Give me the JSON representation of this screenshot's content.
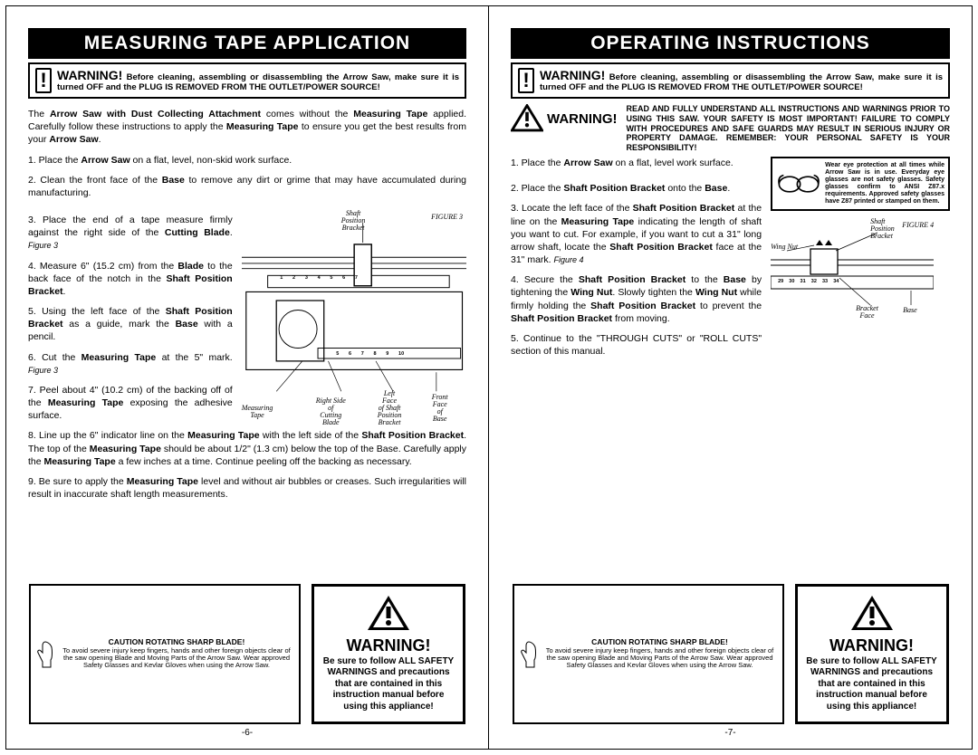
{
  "left": {
    "title": "MEASURING TAPE APPLICATION",
    "warn_head": "WARNING!",
    "warn_text": "Before cleaning, assembling or disassembling the Arrow Saw, make sure it is turned OFF and the PLUG IS REMOVED FROM THE OUTLET/POWER SOURCE!",
    "intro_html": "The <b>Arrow Saw with Dust Collecting Attachment</b> comes without the <b>Measuring Tape</b> applied. Carefully follow these instructions to apply the <b>Measuring Tape</b> to ensure you get the best results from your <b>Arrow Saw</b>.",
    "step1": "1.   Place the <b>Arrow Saw</b> on a flat, level, non-skid work surface.",
    "step2": "2.   Clean the front face of the <b>Base</b> to remove any dirt or grime that may have accumulated during manufacturing.",
    "step3": "3.   Place the end of a tape measure firmly against the right side of the <b>Cutting Blade</b>. <i class='italic'>Figure 3</i>",
    "step4": "4.   Measure 6\" (15.2 cm) from the <b>Blade</b> to the back face of the notch in the <b>Shaft Position Bracket</b>.",
    "step5": "5.   Using the left face of the <b>Shaft Position Bracket</b> as a guide, mark the <b>Base</b> with a pencil.",
    "step6": "6.   Cut the <b>Measuring Tape</b> at the 5\" mark. <i class='italic'>Figure 3</i>",
    "step7": "7.   Peel about 4\" (10.2 cm) of the backing off of the <b>Measuring Tape</b> exposing the adhesive surface.",
    "step8": "8.   Line up the 6\" indicator line on the <b>Measuring Tape</b> with the left side of the <b>Shaft Position Bracket</b>. The top of the <b>Measuring Tape</b> should be about 1/2\" (1.3 cm) below the top of the Base. Carefully apply the <b>Measuring Tape</b> a few inches at a time. Continue peeling off the backing as necessary.",
    "step9": "9.   Be sure to apply the <b>Measuring Tape</b> level and without air bubbles or creases. Such irregularities will result in inaccurate shaft length measurements.",
    "fig3": {
      "title": "FIGURE 3",
      "labels": {
        "shaft_pos_bracket": "Shaft\nPosition\nBracket",
        "measuring_tape": "Measuring\nTape",
        "right_side_cutting": "Right Side\nof\nCutting\nBlade",
        "left_face_shaft": "Left\nFace\nof Shaft\nPosition\nBracket",
        "front_face_base": "Front\nFace\nof\nBase"
      },
      "ruler_top": "   1       2       3       4       5       6       7",
      "ruler_bot": "                    5       6       7       8       9       10"
    },
    "caution_title": "CAUTION ROTATING SHARP BLADE!",
    "caution_text": "To avoid severe injury keep fingers, hands and other foreign objects clear of the saw opening Blade and Moving Parts of the Arrow Saw. Wear approved Safety Glasses and Kevlar Gloves when using the Arrow Saw.",
    "tri_title": "WARNING!",
    "tri_text": "Be sure to follow ALL SAFETY WARNINGS and precautions that are contained in this instruction manual before using this appliance!",
    "page_num": "-6-"
  },
  "right": {
    "title": "OPERATING INSTRUCTIONS",
    "warn_head": "WARNING!",
    "warn_text": "Before cleaning, assembling or disassembling the Arrow Saw, make sure it is turned OFF and the PLUG IS REMOVED FROM THE OUTLET/POWER SOURCE!",
    "safety_text": "READ AND FULLY UNDERSTAND ALL INSTRUCTIONS AND WARNINGS PRIOR TO USING THIS SAW. YOUR SAFETY IS MOST IMPORTANT! FAILURE TO COMPLY WITH PROCEDURES AND SAFE GUARDS MAY RESULT IN SERIOUS INJURY OR PROPERTY DAMAGE. REMEMBER: YOUR PERSONAL SAFETY IS YOUR RESPONSIBILITY!",
    "goggles_text": "Wear eye protection at all times while Arrow Saw is in use. Everyday eye glasses are not safety glasses. Safety glasses confirm to ANSI Z87.x requirements. Approved safety glasses have Z87 printed or stamped on them.",
    "step1": "1.   Place the <b>Arrow Saw</b> on a flat, level work surface.",
    "step2": "2.   Place the <b>Shaft Position Bracket</b> onto the <b>Base</b>.",
    "step3": "3.   Locate the left face of the <b>Shaft Position Bracket</b> at the line on the <b>Measuring Tape</b> indicating the length of shaft you want to cut. For example, if you want to cut a 31\" long arrow shaft, locate the <b>Shaft Position Bracket</b> face at the 31\" mark. <i class='italic'>Figure 4</i>",
    "step4": "4.   Secure the <b>Shaft Position Bracket</b> to the <b>Base</b> by tightening the <b>Wing Nut</b>. Slowly tighten the <b>Wing Nut</b> while firmly holding the <b>Shaft Position Bracket</b> to prevent the <b>Shaft Position Bracket</b> from moving.",
    "step5": "5.   Continue to the \"THROUGH CUTS\" or \"ROLL CUTS\" section of this manual.",
    "fig4": {
      "title": "FIGURE 4",
      "labels": {
        "shaft_pos_bracket": "Shaft\nPosition\nBracket",
        "wing_nut": "Wing Nut",
        "bracket_face": "Bracket\nFace",
        "base": "Base"
      },
      "ruler": "29    30    31    32    33    34"
    },
    "caution_title": "CAUTION ROTATING SHARP BLADE!",
    "caution_text": "To avoid severe injury keep fingers, hands and other foreign objects clear of the saw opening Blade and Moving Parts of the Arrow Saw. Wear approved Safety Glasses and Kevlar Gloves when using the Arrow Saw.",
    "tri_title": "WARNING!",
    "tri_text": "Be sure to follow ALL SAFETY WARNINGS and precautions that are contained in this instruction manual before using this appliance!",
    "page_num": "-7-"
  }
}
